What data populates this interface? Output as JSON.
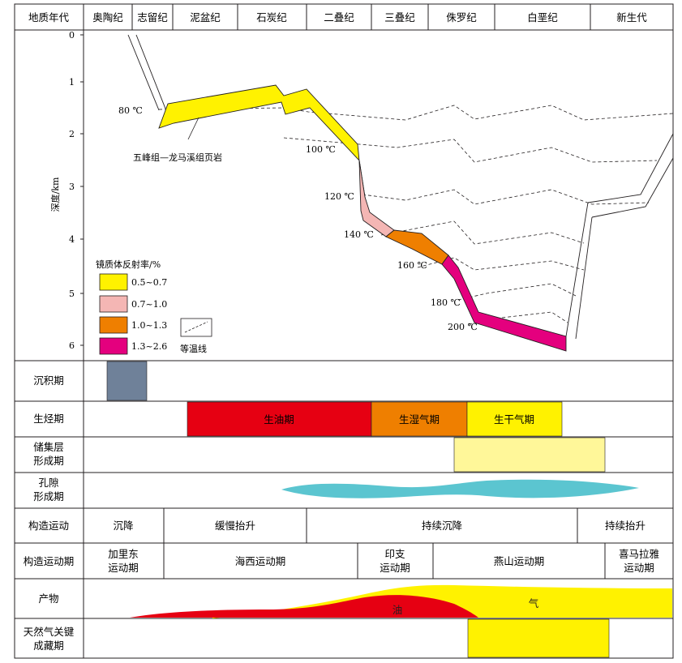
{
  "eras": [
    "地质年代",
    "奥陶纪",
    "志留纪",
    "泥盆纪",
    "石炭纪",
    "二叠纪",
    "三叠纪",
    "侏罗纪",
    "白垩纪",
    "新生代"
  ],
  "depth_axis": {
    "label": "深度/km",
    "ticks": [
      "0",
      "1",
      "2",
      "3",
      "4",
      "5",
      "6"
    ]
  },
  "isotherms": [
    "80 ℃",
    "100 ℃",
    "120 ℃",
    "140 ℃",
    "160 ℃",
    "180 ℃",
    "200 ℃"
  ],
  "formation_label": "五峰组—龙马溪组页岩",
  "legend": {
    "title": "镜质体反射率/%",
    "items": [
      {
        "label": "0.5~0.7",
        "color": "#fff200"
      },
      {
        "label": "0.7~1.0",
        "color": "#f4b6b4"
      },
      {
        "label": "1.0~1.3",
        "color": "#ef7f00"
      },
      {
        "label": "1.3~2.6",
        "color": "#e4007e"
      }
    ],
    "isotherm_label": "等温线"
  },
  "rows": {
    "sedimentation": {
      "label": "沉积期",
      "color": "#6f8199"
    },
    "hydrocarbon": {
      "label": "生烃期",
      "stages": [
        {
          "label": "生油期",
          "color": "#e60012"
        },
        {
          "label": "生湿气期",
          "color": "#ef7f00"
        },
        {
          "label": "生干气期",
          "color": "#fff200"
        }
      ]
    },
    "reservoir": {
      "label_1": "储集层",
      "label_2": "形成期",
      "color": "#fff799"
    },
    "pore": {
      "label_1": "孔隙",
      "label_2": "形成期",
      "color": "#5bc5d0"
    },
    "tectonic": {
      "label": "构造运动",
      "cells": [
        "沉降",
        "缓慢抬升",
        "持续沉降",
        "持续抬升"
      ]
    },
    "tectonic_period": {
      "label": "构造运动期",
      "cells": [
        {
          "line1": "加里东",
          "line2": "运动期"
        },
        {
          "line1": "海西运动期",
          "line2": ""
        },
        {
          "line1": "印支",
          "line2": "运动期"
        },
        {
          "line1": "燕山运动期",
          "line2": ""
        },
        {
          "line1": "喜马拉雅",
          "line2": "运动期"
        }
      ]
    },
    "products": {
      "label": "产物",
      "oil_label": "油",
      "gas_label": "气",
      "oil_color": "#e60012",
      "gas_color": "#fff200"
    },
    "key_period": {
      "label_1": "天然气关键",
      "label_2": "成藏期",
      "color": "#fff200"
    }
  }
}
